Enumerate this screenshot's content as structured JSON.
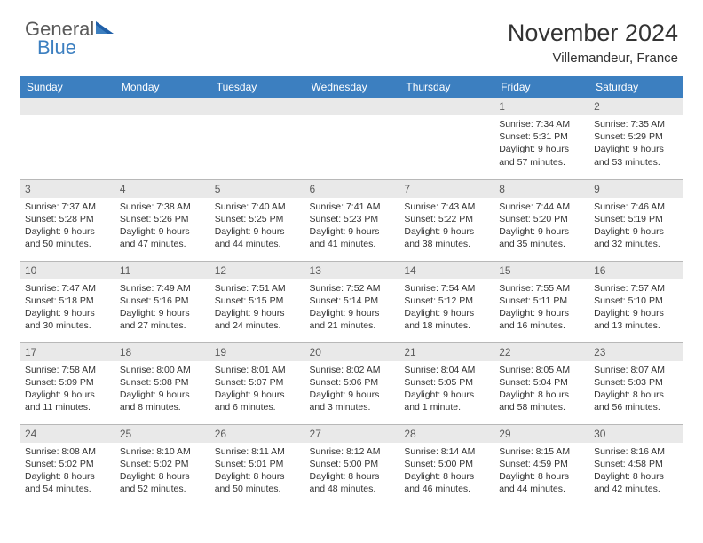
{
  "logo": {
    "word1": "General",
    "word2": "Blue"
  },
  "title": "November 2024",
  "location": "Villemandeur, France",
  "colors": {
    "header_bg": "#3c7fc0",
    "header_text": "#ffffff",
    "daynum_bg": "#e9e9e9",
    "daynum_text": "#5a5a5a",
    "body_text": "#333333",
    "border": "#b8b8b8",
    "logo_gray": "#5a5a5a",
    "logo_blue": "#3c7fc0"
  },
  "columns": [
    "Sunday",
    "Monday",
    "Tuesday",
    "Wednesday",
    "Thursday",
    "Friday",
    "Saturday"
  ],
  "weeks": [
    [
      null,
      null,
      null,
      null,
      null,
      {
        "n": "1",
        "sr": "7:34 AM",
        "ss": "5:31 PM",
        "dl": "9 hours and 57 minutes."
      },
      {
        "n": "2",
        "sr": "7:35 AM",
        "ss": "5:29 PM",
        "dl": "9 hours and 53 minutes."
      }
    ],
    [
      {
        "n": "3",
        "sr": "7:37 AM",
        "ss": "5:28 PM",
        "dl": "9 hours and 50 minutes."
      },
      {
        "n": "4",
        "sr": "7:38 AM",
        "ss": "5:26 PM",
        "dl": "9 hours and 47 minutes."
      },
      {
        "n": "5",
        "sr": "7:40 AM",
        "ss": "5:25 PM",
        "dl": "9 hours and 44 minutes."
      },
      {
        "n": "6",
        "sr": "7:41 AM",
        "ss": "5:23 PM",
        "dl": "9 hours and 41 minutes."
      },
      {
        "n": "7",
        "sr": "7:43 AM",
        "ss": "5:22 PM",
        "dl": "9 hours and 38 minutes."
      },
      {
        "n": "8",
        "sr": "7:44 AM",
        "ss": "5:20 PM",
        "dl": "9 hours and 35 minutes."
      },
      {
        "n": "9",
        "sr": "7:46 AM",
        "ss": "5:19 PM",
        "dl": "9 hours and 32 minutes."
      }
    ],
    [
      {
        "n": "10",
        "sr": "7:47 AM",
        "ss": "5:18 PM",
        "dl": "9 hours and 30 minutes."
      },
      {
        "n": "11",
        "sr": "7:49 AM",
        "ss": "5:16 PM",
        "dl": "9 hours and 27 minutes."
      },
      {
        "n": "12",
        "sr": "7:51 AM",
        "ss": "5:15 PM",
        "dl": "9 hours and 24 minutes."
      },
      {
        "n": "13",
        "sr": "7:52 AM",
        "ss": "5:14 PM",
        "dl": "9 hours and 21 minutes."
      },
      {
        "n": "14",
        "sr": "7:54 AM",
        "ss": "5:12 PM",
        "dl": "9 hours and 18 minutes."
      },
      {
        "n": "15",
        "sr": "7:55 AM",
        "ss": "5:11 PM",
        "dl": "9 hours and 16 minutes."
      },
      {
        "n": "16",
        "sr": "7:57 AM",
        "ss": "5:10 PM",
        "dl": "9 hours and 13 minutes."
      }
    ],
    [
      {
        "n": "17",
        "sr": "7:58 AM",
        "ss": "5:09 PM",
        "dl": "9 hours and 11 minutes."
      },
      {
        "n": "18",
        "sr": "8:00 AM",
        "ss": "5:08 PM",
        "dl": "9 hours and 8 minutes."
      },
      {
        "n": "19",
        "sr": "8:01 AM",
        "ss": "5:07 PM",
        "dl": "9 hours and 6 minutes."
      },
      {
        "n": "20",
        "sr": "8:02 AM",
        "ss": "5:06 PM",
        "dl": "9 hours and 3 minutes."
      },
      {
        "n": "21",
        "sr": "8:04 AM",
        "ss": "5:05 PM",
        "dl": "9 hours and 1 minute."
      },
      {
        "n": "22",
        "sr": "8:05 AM",
        "ss": "5:04 PM",
        "dl": "8 hours and 58 minutes."
      },
      {
        "n": "23",
        "sr": "8:07 AM",
        "ss": "5:03 PM",
        "dl": "8 hours and 56 minutes."
      }
    ],
    [
      {
        "n": "24",
        "sr": "8:08 AM",
        "ss": "5:02 PM",
        "dl": "8 hours and 54 minutes."
      },
      {
        "n": "25",
        "sr": "8:10 AM",
        "ss": "5:02 PM",
        "dl": "8 hours and 52 minutes."
      },
      {
        "n": "26",
        "sr": "8:11 AM",
        "ss": "5:01 PM",
        "dl": "8 hours and 50 minutes."
      },
      {
        "n": "27",
        "sr": "8:12 AM",
        "ss": "5:00 PM",
        "dl": "8 hours and 48 minutes."
      },
      {
        "n": "28",
        "sr": "8:14 AM",
        "ss": "5:00 PM",
        "dl": "8 hours and 46 minutes."
      },
      {
        "n": "29",
        "sr": "8:15 AM",
        "ss": "4:59 PM",
        "dl": "8 hours and 44 minutes."
      },
      {
        "n": "30",
        "sr": "8:16 AM",
        "ss": "4:58 PM",
        "dl": "8 hours and 42 minutes."
      }
    ]
  ],
  "labels": {
    "sunrise": "Sunrise:",
    "sunset": "Sunset:",
    "daylight": "Daylight:"
  }
}
